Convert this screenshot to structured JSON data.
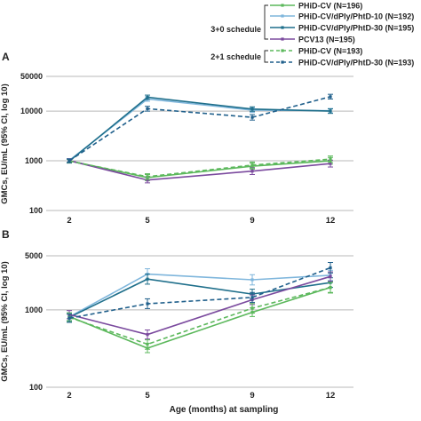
{
  "legend": {
    "groups": [
      {
        "label": "3+0 schedule",
        "entries": [
          0,
          1,
          2,
          3
        ]
      },
      {
        "label": "2+1 schedule",
        "entries": [
          4,
          5
        ]
      }
    ]
  },
  "chart_data": [
    {
      "type": "line",
      "panel_label": "A",
      "xlabel": "",
      "ylabel": "GMCs, EU/mL (95% CI, log 10)",
      "categories": [
        "2",
        "5",
        "9",
        "12"
      ],
      "yscale": "log",
      "ylim": [
        100,
        50000
      ],
      "yticks": [
        100,
        1000,
        10000,
        50000
      ],
      "ytick_labels": [
        "100",
        "1000",
        "10000",
        "50000"
      ],
      "grid": "horizontal",
      "legend_position": "top-right",
      "series": [
        {
          "name": "PHiD-CV (N=196)",
          "color": "#5cb85c",
          "dash": "solid",
          "values": [
            1000,
            460,
            780,
            1000
          ],
          "ci": [
            [
              920,
              1090
            ],
            [
              400,
              530
            ],
            [
              680,
              900
            ],
            [
              860,
              1170
            ]
          ]
        },
        {
          "name": "PHiD-CV/dPly/PhtD-10 (N=192)",
          "color": "#7fb6dc",
          "dash": "solid",
          "values": [
            1020,
            17500,
            10500,
            10200
          ],
          "ci": [
            [
              940,
              1110
            ],
            [
              15800,
              19400
            ],
            [
              9400,
              11700
            ],
            [
              9200,
              11300
            ]
          ]
        },
        {
          "name": "PHiD-CV/dPly/PhtD-30 (N=195)",
          "color": "#1f6f8b",
          "dash": "solid",
          "values": [
            980,
            19000,
            11000,
            10000
          ],
          "ci": [
            [
              900,
              1070
            ],
            [
              17200,
              21000
            ],
            [
              9900,
              12200
            ],
            [
              9000,
              11100
            ]
          ]
        },
        {
          "name": "PCV13 (N=195)",
          "color": "#7b4a9e",
          "dash": "solid",
          "values": [
            1010,
            410,
            620,
            880
          ],
          "ci": [
            [
              930,
              1100
            ],
            [
              360,
              470
            ],
            [
              530,
              730
            ],
            [
              750,
              1030
            ]
          ]
        },
        {
          "name": "PHiD-CV (N=193)",
          "color": "#5cb85c",
          "dash": "dashed",
          "values": [
            990,
            480,
            820,
            1080
          ],
          "ci": [
            [
              910,
              1080
            ],
            [
              420,
              550
            ],
            [
              710,
              950
            ],
            [
              930,
              1250
            ]
          ]
        },
        {
          "name": "PHiD-CV/dPly/PhtD-30 (N=193)",
          "color": "#1f5f8b",
          "dash": "dashed",
          "values": [
            1000,
            11200,
            7500,
            19500
          ],
          "ci": [
            [
              920,
              1090
            ],
            [
              10000,
              12500
            ],
            [
              6600,
              8500
            ],
            [
              17500,
              21800
            ]
          ]
        }
      ]
    },
    {
      "type": "line",
      "panel_label": "B",
      "xlabel": "Age (months) at sampling",
      "ylabel": "GMCs, EU/mL (95% CI, log 10)",
      "categories": [
        "2",
        "5",
        "9",
        "12"
      ],
      "yscale": "log",
      "ylim": [
        100,
        5000
      ],
      "yticks": [
        100,
        1000,
        5000
      ],
      "ytick_labels": [
        "100",
        "1000",
        "5000"
      ],
      "grid": "horizontal",
      "series": [
        {
          "name": "PHiD-CV (N=196)",
          "color": "#5cb85c",
          "dash": "solid",
          "values": [
            820,
            320,
            930,
            1950
          ],
          "ci": [
            [
              730,
              920
            ],
            [
              280,
              370
            ],
            [
              820,
              1060
            ],
            [
              1650,
              2300
            ]
          ]
        },
        {
          "name": "PHiD-CV/dPly/PhtD-10 (N=192)",
          "color": "#7fb6dc",
          "dash": "solid",
          "values": [
            810,
            2900,
            2450,
            2800
          ],
          "ci": [
            [
              720,
              910
            ],
            [
              2500,
              3400
            ],
            [
              2100,
              2850
            ],
            [
              2400,
              3250
            ]
          ]
        },
        {
          "name": "PHiD-CV/dPly/PhtD-30 (N=195)",
          "color": "#1f6f8b",
          "dash": "solid",
          "values": [
            800,
            2500,
            1600,
            2250
          ],
          "ci": [
            [
              710,
              900
            ],
            [
              2150,
              2900
            ],
            [
              1380,
              1850
            ],
            [
              1950,
              2600
            ]
          ]
        },
        {
          "name": "PCV13 (N=195)",
          "color": "#7b4a9e",
          "dash": "solid",
          "values": [
            870,
            480,
            1350,
            2700
          ],
          "ci": [
            [
              770,
              980
            ],
            [
              420,
              550
            ],
            [
              1170,
              1560
            ],
            [
              2350,
              3100
            ]
          ]
        },
        {
          "name": "PHiD-CV (N=193)",
          "color": "#5cb85c",
          "dash": "dashed",
          "values": [
            800,
            360,
            1050,
            1950
          ],
          "ci": [
            [
              710,
              900
            ],
            [
              310,
              410
            ],
            [
              910,
              1210
            ],
            [
              1680,
              2260
            ]
          ]
        },
        {
          "name": "PHiD-CV/dPly/PhtD-30 (N=193)",
          "color": "#1f5f8b",
          "dash": "dashed",
          "values": [
            780,
            1200,
            1450,
            3500
          ],
          "ci": [
            [
              690,
              880
            ],
            [
              1040,
              1390
            ],
            [
              1250,
              1680
            ],
            [
              3000,
              4100
            ]
          ]
        }
      ]
    }
  ]
}
